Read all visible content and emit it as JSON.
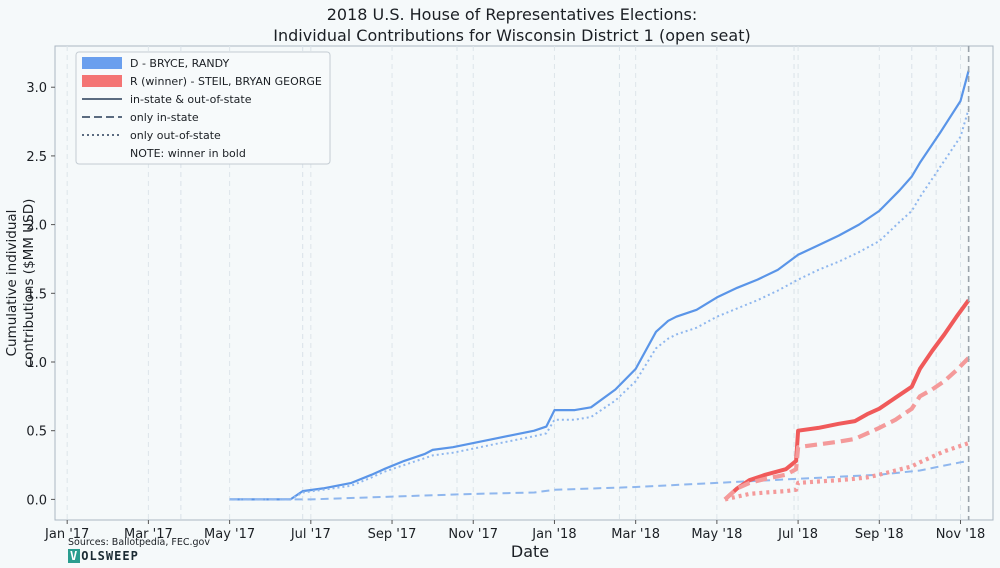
{
  "chart_data": {
    "type": "line",
    "title": "2018 U.S. House of Representatives Elections:",
    "subtitle": "Individual Contributions for Wisconsin District 1 (open seat)",
    "xlabel": "Date",
    "ylabel_line1": "Cumulative individual",
    "ylabel_line2": "contributions ($MM USD)",
    "ylim": [
      -0.15,
      3.3
    ],
    "xlim_months": [
      -0.3,
      22.8
    ],
    "x_ticks": [
      {
        "m": 0,
        "label": "Jan '17"
      },
      {
        "m": 2,
        "label": "Mar '17"
      },
      {
        "m": 4,
        "label": "May '17"
      },
      {
        "m": 6,
        "label": "Jul '17"
      },
      {
        "m": 8,
        "label": "Sep '17"
      },
      {
        "m": 10,
        "label": "Nov '17"
      },
      {
        "m": 12,
        "label": "Jan '18"
      },
      {
        "m": 14,
        "label": "Mar '18"
      },
      {
        "m": 16,
        "label": "May '18"
      },
      {
        "m": 18,
        "label": "Jul '18"
      },
      {
        "m": 20,
        "label": "Sep '18"
      },
      {
        "m": 22,
        "label": "Nov '18"
      }
    ],
    "y_ticks": [
      0.0,
      0.5,
      1.0,
      1.5,
      2.0,
      2.5,
      3.0
    ],
    "y_tick_labels": [
      "0.0",
      "0.5",
      "1.0",
      "1.5",
      "2.0",
      "2.5",
      "3.0"
    ],
    "minor_gridlines_months": [
      2.8,
      5.8,
      9.6,
      13.6,
      17.9,
      20.8,
      21.4
    ],
    "election_marker_month": 22.2,
    "grid": true,
    "legend_position": "top-left",
    "legend": [
      {
        "kind": "patch",
        "color": "#6a9fee",
        "label": "D - BRYCE, RANDY"
      },
      {
        "kind": "patch",
        "color": "#f47474",
        "label": "R (winner) - STEIL, BRYAN GEORGE"
      },
      {
        "kind": "solid",
        "color": "#5b6b80",
        "label": "in-state & out-of-state"
      },
      {
        "kind": "dashed",
        "color": "#5b6b80",
        "label": "only in-state"
      },
      {
        "kind": "dotted",
        "color": "#5b6b80",
        "label": "only out-of-state"
      },
      {
        "kind": "none",
        "color": "",
        "label": "NOTE: winner in bold"
      }
    ],
    "series": [
      {
        "name": "D - BRYCE, RANDY",
        "style": "solid",
        "color": "#5a95e8",
        "bold": false,
        "x": [
          4.0,
          5.5,
          5.8,
          6.3,
          7.0,
          7.5,
          7.8,
          8.3,
          8.8,
          9.0,
          9.5,
          10.0,
          10.5,
          11.0,
          11.5,
          11.8,
          12.0,
          12.5,
          12.9,
          13.5,
          14.0,
          14.5,
          14.8,
          15.0,
          15.5,
          16.0,
          16.5,
          17.0,
          17.5,
          18.0,
          18.5,
          19.0,
          19.5,
          20.0,
          20.5,
          20.8,
          21.0,
          21.5,
          22.0,
          22.2
        ],
        "y": [
          0.0,
          0.0,
          0.06,
          0.08,
          0.12,
          0.18,
          0.22,
          0.28,
          0.33,
          0.36,
          0.38,
          0.41,
          0.44,
          0.47,
          0.5,
          0.53,
          0.65,
          0.65,
          0.67,
          0.8,
          0.95,
          1.22,
          1.3,
          1.33,
          1.38,
          1.47,
          1.54,
          1.6,
          1.67,
          1.78,
          1.85,
          1.92,
          2.0,
          2.1,
          2.25,
          2.35,
          2.45,
          2.67,
          2.9,
          3.12
        ]
      },
      {
        "name": "D - BRYCE, RANDY",
        "style": "dashed",
        "color": "#8fb7ee",
        "bold": false,
        "x": [
          4.0,
          6.0,
          8.0,
          10.0,
          11.5,
          12.0,
          14.0,
          16.0,
          18.0,
          20.0,
          21.0,
          22.0,
          22.2
        ],
        "y": [
          0.0,
          0.0,
          0.02,
          0.04,
          0.05,
          0.07,
          0.09,
          0.12,
          0.15,
          0.18,
          0.21,
          0.27,
          0.28
        ]
      },
      {
        "name": "D - BRYCE, RANDY",
        "style": "dotted",
        "color": "#8fb7ee",
        "bold": false,
        "x": [
          4.0,
          5.5,
          5.8,
          6.3,
          7.0,
          7.5,
          7.8,
          8.3,
          8.8,
          9.0,
          9.5,
          10.0,
          10.5,
          11.0,
          11.5,
          11.8,
          12.0,
          12.5,
          12.9,
          13.5,
          14.0,
          14.5,
          14.8,
          15.0,
          15.5,
          16.0,
          16.5,
          17.0,
          17.5,
          18.0,
          18.5,
          19.0,
          19.5,
          20.0,
          20.5,
          20.8,
          21.0,
          21.5,
          22.0,
          22.2
        ],
        "y": [
          0.0,
          0.0,
          0.05,
          0.07,
          0.1,
          0.16,
          0.2,
          0.25,
          0.3,
          0.32,
          0.34,
          0.37,
          0.4,
          0.43,
          0.46,
          0.48,
          0.58,
          0.58,
          0.6,
          0.72,
          0.86,
          1.1,
          1.17,
          1.2,
          1.25,
          1.33,
          1.39,
          1.45,
          1.52,
          1.6,
          1.67,
          1.73,
          1.8,
          1.88,
          2.02,
          2.1,
          2.2,
          2.42,
          2.64,
          2.84
        ]
      },
      {
        "name": "R (winner) - STEIL, BRYAN GEORGE",
        "style": "solid",
        "color": "#f05a5a",
        "bold": true,
        "x": [
          16.2,
          16.5,
          16.8,
          17.2,
          17.7,
          17.95,
          18.0,
          18.5,
          19.0,
          19.4,
          19.7,
          20.0,
          20.4,
          20.8,
          21.0,
          21.3,
          21.6,
          21.9,
          22.2
        ],
        "y": [
          0.0,
          0.08,
          0.14,
          0.18,
          0.22,
          0.28,
          0.5,
          0.52,
          0.55,
          0.57,
          0.62,
          0.66,
          0.74,
          0.82,
          0.95,
          1.08,
          1.2,
          1.33,
          1.45
        ]
      },
      {
        "name": "R (winner) - STEIL, BRYAN GEORGE",
        "style": "dashed",
        "color": "#f49a9a",
        "bold": true,
        "x": [
          16.2,
          16.5,
          16.8,
          17.2,
          17.7,
          17.95,
          18.0,
          18.5,
          19.0,
          19.4,
          19.7,
          20.0,
          20.4,
          20.8,
          21.0,
          21.3,
          21.6,
          21.9,
          22.2
        ],
        "y": [
          0.0,
          0.08,
          0.12,
          0.15,
          0.18,
          0.22,
          0.38,
          0.4,
          0.42,
          0.44,
          0.48,
          0.52,
          0.58,
          0.66,
          0.75,
          0.8,
          0.86,
          0.94,
          1.03
        ]
      },
      {
        "name": "R (winner) - STEIL, BRYAN GEORGE",
        "style": "dotted",
        "color": "#f49a9a",
        "bold": true,
        "x": [
          16.2,
          16.5,
          16.8,
          17.2,
          17.7,
          17.95,
          18.0,
          18.5,
          19.0,
          19.4,
          19.7,
          20.0,
          20.4,
          20.8,
          21.0,
          21.3,
          21.6,
          21.9,
          22.2
        ],
        "y": [
          0.0,
          0.02,
          0.04,
          0.05,
          0.06,
          0.07,
          0.12,
          0.13,
          0.14,
          0.15,
          0.16,
          0.18,
          0.21,
          0.24,
          0.27,
          0.31,
          0.35,
          0.38,
          0.41
        ]
      }
    ]
  },
  "footer": {
    "sources": "Sources: Ballotpedia, FEC.gov",
    "logo_first": "V",
    "logo_rest": "OLSWEEP"
  }
}
